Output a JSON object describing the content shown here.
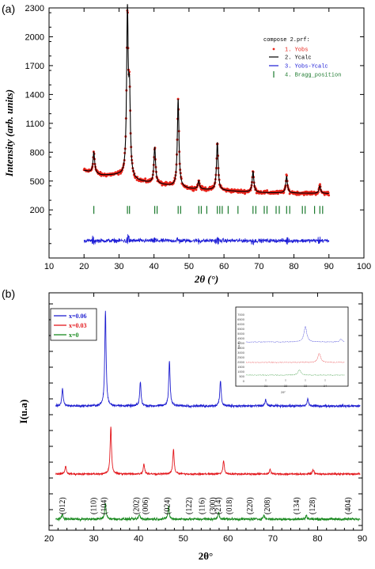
{
  "panels": [
    {
      "label": "(a)"
    },
    {
      "label": "(b)"
    }
  ],
  "chart_data": [
    {
      "type": "line",
      "panel": "(a)",
      "title": "",
      "xlabel": "2θ (°)",
      "ylabel": "Intensity (arb. units)",
      "xlim": [
        10,
        100
      ],
      "ylim": [
        -300,
        2300
      ],
      "xticks": [
        10,
        20,
        30,
        40,
        50,
        60,
        70,
        80,
        90,
        100
      ],
      "xtick_labels": [
        "10",
        "20",
        "30",
        "40",
        "50",
        "60",
        "70",
        "80",
        "90",
        "100"
      ],
      "yticks": [
        200,
        500,
        800,
        1100,
        1400,
        1700,
        2000,
        2300
      ],
      "ytick_labels": [
        "200",
        "500",
        "800",
        "1100",
        "1400",
        "1700",
        "2000",
        "2300"
      ],
      "legend_title": "compose 2.prf:",
      "legend_position": "top-right",
      "x_range": [
        20,
        90
      ],
      "background": [
        {
          "x": 20,
          "y": 610
        },
        {
          "x": 25,
          "y": 560
        },
        {
          "x": 30,
          "y": 560
        },
        {
          "x": 35,
          "y": 500
        },
        {
          "x": 40,
          "y": 475
        },
        {
          "x": 50,
          "y": 420
        },
        {
          "x": 60,
          "y": 400
        },
        {
          "x": 70,
          "y": 380
        },
        {
          "x": 80,
          "y": 375
        },
        {
          "x": 90,
          "y": 370
        }
      ],
      "peaks": [
        {
          "x": 22.8,
          "y": 800
        },
        {
          "x": 32.4,
          "y": 2200
        },
        {
          "x": 33.0,
          "y": 1300
        },
        {
          "x": 40.2,
          "y": 850
        },
        {
          "x": 46.9,
          "y": 1350
        },
        {
          "x": 52.8,
          "y": 500
        },
        {
          "x": 58.1,
          "y": 900
        },
        {
          "x": 68.3,
          "y": 600
        },
        {
          "x": 77.9,
          "y": 550
        },
        {
          "x": 87.4,
          "y": 450
        }
      ],
      "bragg_positions": [
        22.8,
        32.4,
        33.0,
        40.2,
        40.9,
        46.9,
        47.6,
        52.8,
        53.5,
        55.1,
        58.1,
        58.8,
        59.5,
        61.2,
        64.0,
        68.3,
        69.1,
        71.5,
        72.3,
        74.9,
        75.8,
        77.9,
        78.8,
        82.4,
        83.2,
        85.9,
        87.4,
        88.2
      ],
      "bragg_level": 200,
      "difference_level": -120,
      "series": [
        {
          "name": "1.  Yobs",
          "color": "#e8231a",
          "style": "points"
        },
        {
          "name": "2.  Ycalc",
          "color": "#000000",
          "style": "line"
        },
        {
          "name": "3.  Yobs-Ycalc",
          "color": "#1b1bd6",
          "style": "line"
        },
        {
          "name": "4.  Bragg_position",
          "color": "#1c7a2e",
          "style": "ticks"
        }
      ]
    },
    {
      "type": "line",
      "panel": "(b)",
      "title": "",
      "xlabel": "2θ°",
      "ylabel": "I(u.a)",
      "xlim": [
        20,
        90
      ],
      "xticks": [
        20,
        30,
        40,
        50,
        60,
        70,
        80,
        90
      ],
      "xtick_labels": [
        "20",
        "30",
        "40",
        "50",
        "60",
        "70",
        "80",
        "90"
      ],
      "legend_position": "top-left",
      "series": [
        {
          "name": "x=0.06",
          "color": "#1f1fd0",
          "peaks": [
            {
              "x": 23.0,
              "h": 22
            },
            {
              "x": 32.6,
              "h": 120
            },
            {
              "x": 40.4,
              "h": 30
            },
            {
              "x": 46.9,
              "h": 58
            },
            {
              "x": 58.3,
              "h": 32
            },
            {
              "x": 68.4,
              "h": 8
            },
            {
              "x": 77.8,
              "h": 9
            }
          ]
        },
        {
          "name": "x=0.03",
          "color": "#e3171c",
          "peaks": [
            {
              "x": 23.7,
              "h": 10
            },
            {
              "x": 33.8,
              "h": 60
            },
            {
              "x": 41.2,
              "h": 13
            },
            {
              "x": 47.8,
              "h": 32
            },
            {
              "x": 59.0,
              "h": 17
            },
            {
              "x": 69.4,
              "h": 6
            },
            {
              "x": 79.0,
              "h": 6
            }
          ]
        },
        {
          "name": "x=0",
          "color": "#1a8a20",
          "peaks": [
            {
              "x": 23.0,
              "h": 6
            },
            {
              "x": 32.6,
              "h": 20
            },
            {
              "x": 40.2,
              "h": 6
            },
            {
              "x": 46.7,
              "h": 16
            },
            {
              "x": 57.9,
              "h": 9
            },
            {
              "x": 68.0,
              "h": 5
            },
            {
              "x": 77.5,
              "h": 5
            }
          ]
        }
      ],
      "hkl_labels": [
        {
          "x": 23.0,
          "text": "(012)"
        },
        {
          "x": 30.0,
          "text": "(110)"
        },
        {
          "x": 32.3,
          "text": "(104)"
        },
        {
          "x": 39.5,
          "text": "(202)"
        },
        {
          "x": 41.6,
          "text": "(006)"
        },
        {
          "x": 46.4,
          "text": "(024)"
        },
        {
          "x": 51.3,
          "text": "(122)"
        },
        {
          "x": 54.2,
          "text": "(116)"
        },
        {
          "x": 56.6,
          "text": "(300)"
        },
        {
          "x": 57.8,
          "text": "(214)"
        },
        {
          "x": 60.3,
          "text": "(018)"
        },
        {
          "x": 64.9,
          "text": "(220)"
        },
        {
          "x": 68.8,
          "text": "(208)"
        },
        {
          "x": 75.3,
          "text": "(134)"
        },
        {
          "x": 78.9,
          "text": "(128)"
        },
        {
          "x": 86.8,
          "text": "(404)"
        }
      ],
      "inset": {
        "ylabel": "I(u.a)",
        "xlabel": "2θ°",
        "xlim": [
          30,
          35
        ],
        "yticks": [
          "7000",
          "6500",
          "6000",
          "5500",
          "5000",
          "4500",
          "4000",
          "3500",
          "3000",
          "2500",
          "2000",
          "1500",
          "1000",
          "500",
          "0"
        ],
        "xticks": [
          "31",
          "32",
          "33",
          "34"
        ]
      }
    }
  ]
}
